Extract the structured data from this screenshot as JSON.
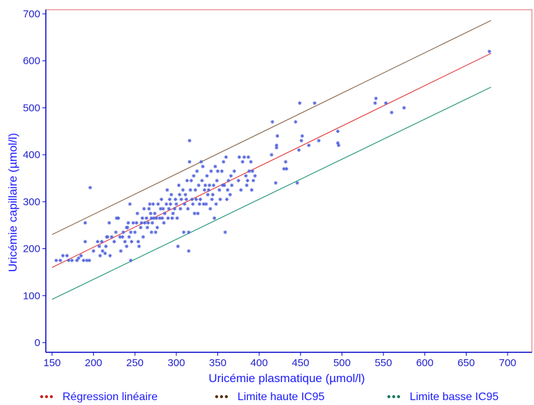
{
  "chart_data": {
    "type": "scatter",
    "xlabel": "Uricémie plasmatique (µmol/l)",
    "ylabel": "Uricémie capillaire (µmol/l)",
    "xlim": [
      150,
      700
    ],
    "ylim": [
      0,
      700
    ],
    "x_ticks": [
      "150",
      "200",
      "250",
      "300",
      "350",
      "400",
      "450",
      "500",
      "550",
      "600",
      "650",
      "700"
    ],
    "y_ticks": [
      "0",
      "100",
      "200",
      "300",
      "400",
      "500",
      "600",
      "700"
    ],
    "colors": {
      "axis": "#0000cc",
      "frame": "#e06060",
      "text": "#2222cc",
      "points": "#5566dd",
      "regression": "#e04040",
      "upper": "#8b6a50",
      "lower": "#2e9a80"
    },
    "lines": [
      {
        "name": "Régression linéaire",
        "color": "#e04040",
        "x": [
          150,
          680
        ],
        "y": [
          160,
          616
        ]
      },
      {
        "name": "Limite haute IC95",
        "color": "#8b6a50",
        "x": [
          150,
          680
        ],
        "y": [
          230,
          686
        ]
      },
      {
        "name": "Limite basse IC95",
        "color": "#2e9a80",
        "x": [
          150,
          680
        ],
        "y": [
          92,
          544
        ]
      }
    ],
    "legend": {
      "placement": "bottom",
      "items": [
        {
          "name": "Régression linéaire",
          "color": "#cc2222"
        },
        {
          "name": "Limite haute IC95",
          "color": "#5a3010"
        },
        {
          "name": "Limite basse IC95",
          "color": "#1a7a60"
        }
      ]
    },
    "points": [
      [
        155,
        175
      ],
      [
        160,
        175
      ],
      [
        163,
        185
      ],
      [
        168,
        185
      ],
      [
        170,
        175
      ],
      [
        174,
        175
      ],
      [
        180,
        175
      ],
      [
        182,
        180
      ],
      [
        185,
        185
      ],
      [
        188,
        175
      ],
      [
        190,
        215
      ],
      [
        190,
        255
      ],
      [
        192,
        175
      ],
      [
        195,
        175
      ],
      [
        196,
        330
      ],
      [
        200,
        195
      ],
      [
        205,
        215
      ],
      [
        207,
        205
      ],
      [
        208,
        185
      ],
      [
        210,
        215
      ],
      [
        211,
        195
      ],
      [
        214,
        190
      ],
      [
        215,
        205
      ],
      [
        216,
        225
      ],
      [
        217,
        225
      ],
      [
        219,
        255
      ],
      [
        220,
        185
      ],
      [
        222,
        225
      ],
      [
        225,
        215
      ],
      [
        227,
        235
      ],
      [
        228,
        265
      ],
      [
        230,
        265
      ],
      [
        232,
        225
      ],
      [
        233,
        195
      ],
      [
        235,
        225
      ],
      [
        236,
        235
      ],
      [
        238,
        215
      ],
      [
        240,
        205
      ],
      [
        240,
        245
      ],
      [
        241,
        245
      ],
      [
        242,
        255
      ],
      [
        243,
        225
      ],
      [
        244,
        295
      ],
      [
        245,
        175
      ],
      [
        245,
        235
      ],
      [
        246,
        215
      ],
      [
        248,
        255
      ],
      [
        250,
        235
      ],
      [
        252,
        255
      ],
      [
        253,
        275
      ],
      [
        254,
        215
      ],
      [
        255,
        205
      ],
      [
        257,
        245
      ],
      [
        258,
        255
      ],
      [
        259,
        265
      ],
      [
        260,
        225
      ],
      [
        261,
        285
      ],
      [
        262,
        255
      ],
      [
        264,
        265
      ],
      [
        265,
        245
      ],
      [
        266,
        255
      ],
      [
        267,
        285
      ],
      [
        268,
        295
      ],
      [
        269,
        275
      ],
      [
        270,
        235
      ],
      [
        270,
        265
      ],
      [
        271,
        255
      ],
      [
        272,
        295
      ],
      [
        273,
        265
      ],
      [
        274,
        275
      ],
      [
        275,
        235
      ],
      [
        276,
        265
      ],
      [
        277,
        245
      ],
      [
        278,
        295
      ],
      [
        280,
        265
      ],
      [
        281,
        285
      ],
      [
        282,
        305
      ],
      [
        283,
        265
      ],
      [
        284,
        285
      ],
      [
        285,
        255
      ],
      [
        286,
        275
      ],
      [
        288,
        295
      ],
      [
        289,
        325
      ],
      [
        290,
        265
      ],
      [
        291,
        285
      ],
      [
        292,
        305
      ],
      [
        293,
        295
      ],
      [
        294,
        315
      ],
      [
        295,
        265
      ],
      [
        296,
        275
      ],
      [
        298,
        285
      ],
      [
        299,
        305
      ],
      [
        300,
        295
      ],
      [
        301,
        265
      ],
      [
        302,
        205
      ],
      [
        303,
        335
      ],
      [
        304,
        315
      ],
      [
        305,
        285
      ],
      [
        306,
        305
      ],
      [
        308,
        325
      ],
      [
        309,
        235
      ],
      [
        310,
        295
      ],
      [
        311,
        315
      ],
      [
        312,
        305
      ],
      [
        313,
        345
      ],
      [
        314,
        285
      ],
      [
        315,
        195
      ],
      [
        315,
        235
      ],
      [
        316,
        385
      ],
      [
        316,
        430
      ],
      [
        317,
        325
      ],
      [
        318,
        345
      ],
      [
        319,
        305
      ],
      [
        320,
        295
      ],
      [
        321,
        355
      ],
      [
        322,
        275
      ],
      [
        323,
        325
      ],
      [
        324,
        305
      ],
      [
        325,
        365
      ],
      [
        326,
        275
      ],
      [
        327,
        335
      ],
      [
        328,
        295
      ],
      [
        329,
        305
      ],
      [
        330,
        385
      ],
      [
        331,
        345
      ],
      [
        332,
        375
      ],
      [
        333,
        295
      ],
      [
        334,
        325
      ],
      [
        335,
        335
      ],
      [
        336,
        295
      ],
      [
        337,
        355
      ],
      [
        338,
        315
      ],
      [
        339,
        325
      ],
      [
        340,
        335
      ],
      [
        341,
        285
      ],
      [
        342,
        365
      ],
      [
        343,
        305
      ],
      [
        344,
        315
      ],
      [
        345,
        335
      ],
      [
        346,
        265
      ],
      [
        347,
        375
      ],
      [
        348,
        295
      ],
      [
        349,
        345
      ],
      [
        350,
        365
      ],
      [
        352,
        325
      ],
      [
        353,
        305
      ],
      [
        355,
        365
      ],
      [
        356,
        335
      ],
      [
        357,
        385
      ],
      [
        358,
        335
      ],
      [
        359,
        235
      ],
      [
        360,
        395
      ],
      [
        361,
        305
      ],
      [
        362,
        325
      ],
      [
        363,
        345
      ],
      [
        365,
        315
      ],
      [
        366,
        355
      ],
      [
        367,
        335
      ],
      [
        370,
        365
      ],
      [
        375,
        345
      ],
      [
        376,
        395
      ],
      [
        378,
        325
      ],
      [
        380,
        385
      ],
      [
        382,
        395
      ],
      [
        384,
        355
      ],
      [
        385,
        335
      ],
      [
        386,
        345
      ],
      [
        387,
        395
      ],
      [
        388,
        365
      ],
      [
        390,
        385
      ],
      [
        391,
        325
      ],
      [
        392,
        365
      ],
      [
        393,
        345
      ],
      [
        395,
        355
      ],
      [
        415,
        400
      ],
      [
        416,
        470
      ],
      [
        420,
        340
      ],
      [
        421,
        415
      ],
      [
        421,
        420
      ],
      [
        422,
        440
      ],
      [
        430,
        370
      ],
      [
        432,
        385
      ],
      [
        433,
        370
      ],
      [
        444,
        470
      ],
      [
        446,
        340
      ],
      [
        448,
        410
      ],
      [
        449,
        510
      ],
      [
        451,
        430
      ],
      [
        452,
        440
      ],
      [
        460,
        420
      ],
      [
        467,
        510
      ],
      [
        472,
        430
      ],
      [
        495,
        425
      ],
      [
        495,
        450
      ],
      [
        496,
        420
      ],
      [
        540,
        510
      ],
      [
        541,
        520
      ],
      [
        553,
        510
      ],
      [
        560,
        490
      ],
      [
        575,
        500
      ],
      [
        678,
        620
      ]
    ]
  }
}
